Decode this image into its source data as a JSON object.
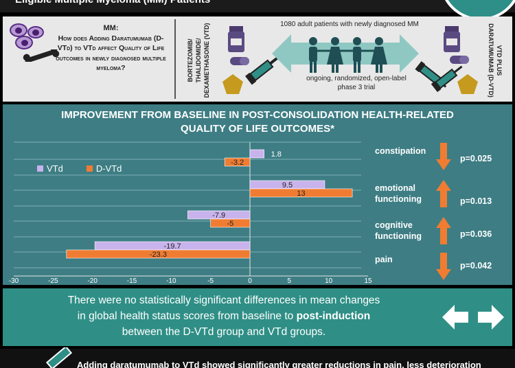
{
  "page": {
    "title": "Eligible Multiple Myeloma (MM) Patients"
  },
  "header": {
    "mm_heading": "MM:",
    "question": "How does Adding Daratumumab (D-VTd) to VTd affect Quality of Life outcomes in newly diagnosed multiple myeloma?",
    "vtd_label": "BORTEZOMIB/ THALIDOMIDE/ DEXAMETHASONE (VTD)",
    "dvtd_label": "VTD PLUS DARATUMUMAB (D-VTD)",
    "patients": "1080 adult patients with newly diagnosed MM",
    "trial_line1": "ongoing, randomized, open-label",
    "trial_line2": "phase 3 trial"
  },
  "chart": {
    "title_line1": "IMPROVEMENT FROM BASELINE IN POST-CONSOLIDATION HEALTH-RELATED",
    "title_line2": "QUALITY OF LIFE OUTCOMES*"
  },
  "chart_data": {
    "type": "bar",
    "orientation": "horizontal",
    "categories": [
      "constipation",
      "emotional functioning",
      "cognitive functioning",
      "pain"
    ],
    "series": [
      {
        "name": "VTd",
        "values": [
          1.8,
          9.5,
          -7.9,
          -19.7
        ],
        "color": "#c9b3ec"
      },
      {
        "name": "D-VTd",
        "values": [
          -3.2,
          13,
          -5,
          -23.3
        ],
        "color": "#f07c32"
      }
    ],
    "xlim": [
      -30,
      15
    ],
    "xticks": [
      -30,
      -25,
      -20,
      -15,
      -10,
      -5,
      0,
      5,
      10,
      15
    ],
    "value_labels": [
      [
        "1.8",
        "9.5",
        "-7.9",
        "-19.7"
      ],
      [
        "-3.2",
        "13",
        "-5",
        "-23.3"
      ]
    ],
    "grid": true,
    "legend": "top-left"
  },
  "outcomes": [
    {
      "name_line1": "constipation",
      "name_line2": "",
      "direction": "down",
      "p": "p=0.025"
    },
    {
      "name_line1": "emotional",
      "name_line2": "functioning",
      "direction": "up",
      "p": "p=0.013"
    },
    {
      "name_line1": "cognitive",
      "name_line2": "functioning",
      "direction": "up",
      "p": "p=0.036"
    },
    {
      "name_line1": "pain",
      "name_line2": "",
      "direction": "down",
      "p": "p=0.042"
    }
  ],
  "note": {
    "line1": "There were no statistically significant differences in mean changes",
    "line2_pre": "in global health status scores from baseline to ",
    "line2_bold": "post-induction",
    "line3": "between the D-VTd group and VTd groups."
  },
  "bottom": {
    "text": "Adding daratumumab to VTd showed significantly greater reductions in pain, less deterioration"
  },
  "colors": {
    "teal_dark": "#3e7d84",
    "teal": "#2f8f86",
    "orange": "#f07c32",
    "lavender": "#c9b3ec"
  }
}
